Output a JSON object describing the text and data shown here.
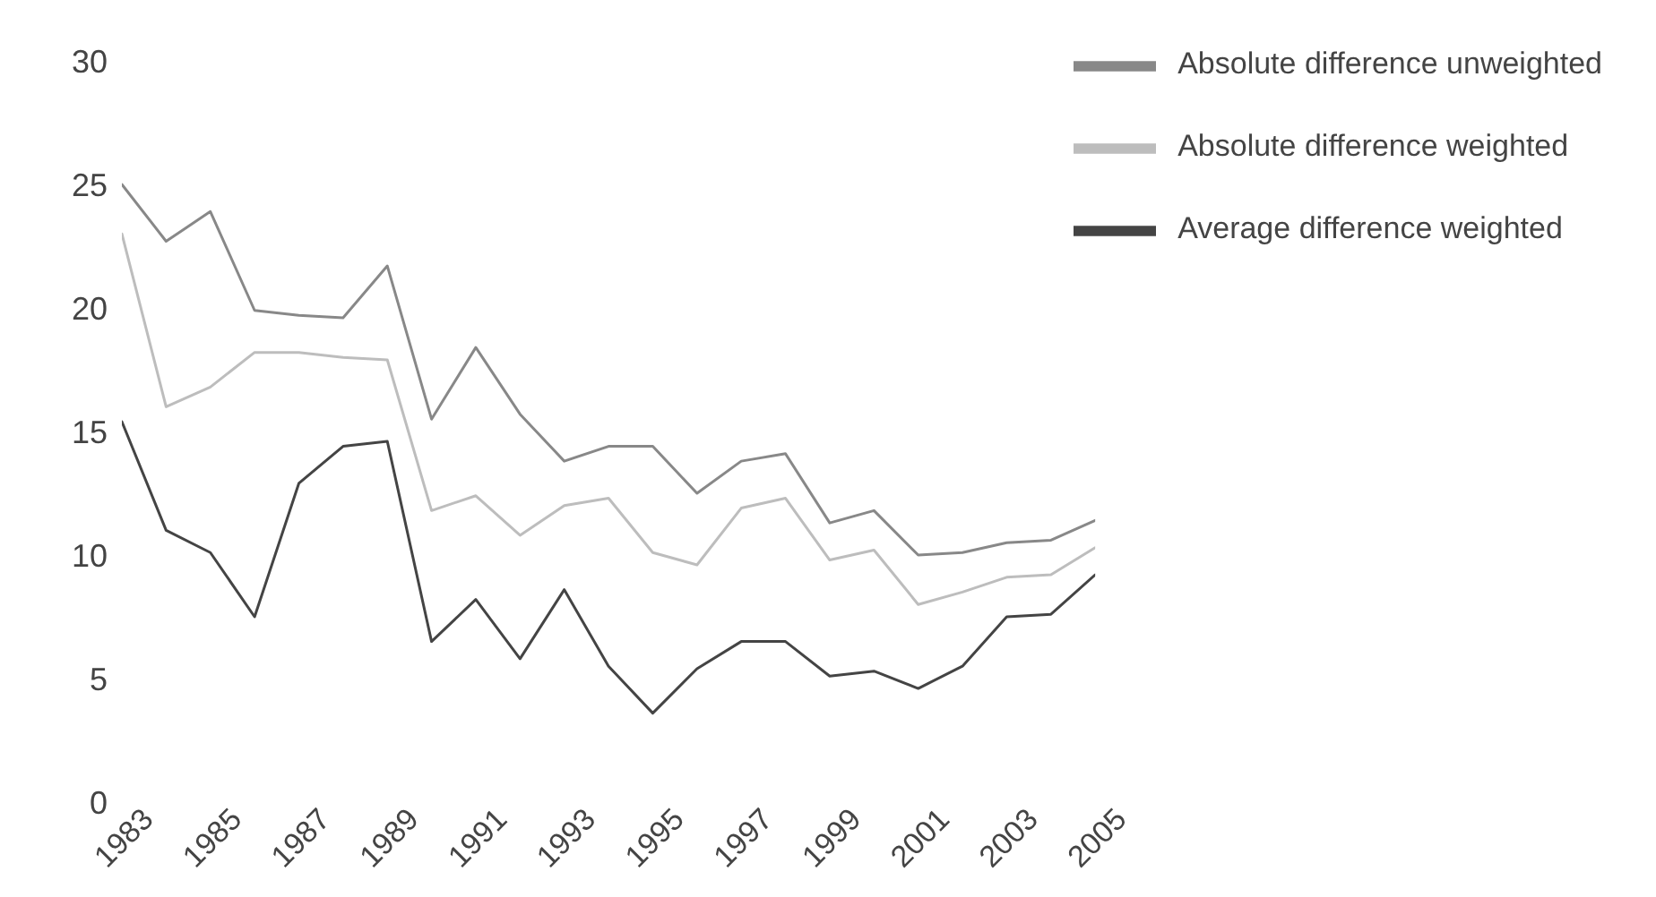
{
  "chart_data": {
    "type": "line",
    "x": [
      1983,
      1984,
      1985,
      1986,
      1987,
      1988,
      1989,
      1990,
      1991,
      1992,
      1993,
      1994,
      1995,
      1996,
      1997,
      1998,
      1999,
      2000,
      2001,
      2002,
      2003,
      2004,
      2005
    ],
    "series": [
      {
        "name": "Absolute difference unweighted",
        "color": "#888888",
        "values": [
          25,
          22.7,
          23.9,
          19.9,
          19.7,
          19.6,
          21.7,
          15.5,
          18.4,
          15.7,
          13.8,
          14.4,
          14.4,
          12.5,
          13.8,
          14.1,
          11.3,
          11.8,
          10,
          10.1,
          10.5,
          10.6,
          11.4
        ]
      },
      {
        "name": "Absolute difference weighted",
        "color": "#bdbdbd",
        "values": [
          23,
          16,
          16.8,
          18.2,
          18.2,
          18,
          17.9,
          11.8,
          12.4,
          10.8,
          12,
          12.3,
          10.1,
          9.6,
          11.9,
          12.3,
          9.8,
          10.2,
          8,
          8.5,
          9.1,
          9.2,
          10.3
        ]
      },
      {
        "name": "Average difference weighted",
        "color": "#444444",
        "values": [
          15.4,
          11,
          10.1,
          7.5,
          12.9,
          14.4,
          14.6,
          6.5,
          8.2,
          5.8,
          8.6,
          5.5,
          3.6,
          5.4,
          6.5,
          6.5,
          5.1,
          5.3,
          4.6,
          5.5,
          7.5,
          7.6,
          9.2
        ]
      }
    ],
    "xlim": [
      1983,
      2005
    ],
    "xticks": [
      1983,
      1985,
      1987,
      1989,
      1991,
      1993,
      1995,
      1997,
      1999,
      2001,
      2003,
      2005
    ],
    "ylim": [
      0,
      30
    ],
    "yticks": [
      0,
      5,
      10,
      15,
      20,
      25,
      30
    ],
    "legend": "top right",
    "marker": "none",
    "line_style": "solid"
  }
}
